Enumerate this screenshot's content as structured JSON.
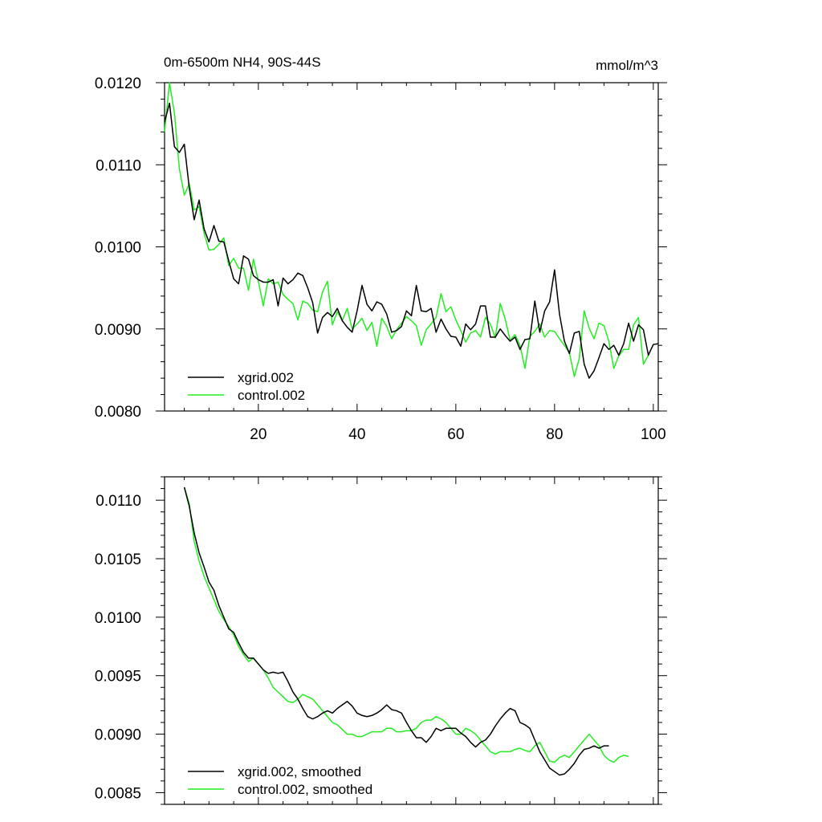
{
  "colors": {
    "xgrid": "#000000",
    "control": "#22ee22",
    "axis": "#000000"
  },
  "chart_data": [
    {
      "type": "line",
      "title": "0m-6500m NH4, 90S-44S",
      "units": "mmol/m^3",
      "xlim": [
        1,
        101
      ],
      "ylim": [
        0.008,
        0.012
      ],
      "xticks": [
        20,
        40,
        60,
        80,
        100
      ],
      "xtick_labels": [
        "20",
        "40",
        "60",
        "80",
        "100"
      ],
      "yticks": [
        0.008,
        0.009,
        0.01,
        0.011,
        0.012
      ],
      "ytick_labels": [
        "0.0080",
        "0.0090",
        "0.0100",
        "0.0110",
        "0.0120"
      ],
      "legend_position": "bottom-left",
      "series": [
        {
          "name": "xgrid.002",
          "color_key": "xgrid",
          "x_start": 1,
          "values": [
            0.01152,
            0.01175,
            0.01122,
            0.01115,
            0.01125,
            0.01072,
            0.01033,
            0.01057,
            0.01022,
            0.01006,
            0.01026,
            0.01007,
            0.01006,
            0.00983,
            0.00961,
            0.00955,
            0.00989,
            0.00985,
            0.00965,
            0.0096,
            0.00957,
            0.00957,
            0.0096,
            0.00928,
            0.00962,
            0.00955,
            0.0096,
            0.00968,
            0.00965,
            0.0095,
            0.00932,
            0.00895,
            0.00914,
            0.0092,
            0.00915,
            0.00925,
            0.0091,
            0.00902,
            0.00896,
            0.00922,
            0.00953,
            0.0093,
            0.00922,
            0.00933,
            0.0093,
            0.00918,
            0.00896,
            0.00898,
            0.00903,
            0.00922,
            0.00916,
            0.00953,
            0.00922,
            0.00921,
            0.00925,
            0.00896,
            0.00912,
            0.009,
            0.00891,
            0.0089,
            0.00879,
            0.00906,
            0.00899,
            0.00906,
            0.00928,
            0.00928,
            0.0089,
            0.0089,
            0.009,
            0.00892,
            0.00885,
            0.0089,
            0.00875,
            0.00887,
            0.00888,
            0.00934,
            0.00896,
            0.00922,
            0.00933,
            0.00972,
            0.00918,
            0.00885,
            0.0087,
            0.00895,
            0.00897,
            0.00857,
            0.0084,
            0.00849,
            0.00865,
            0.00882,
            0.00875,
            0.0088,
            0.00868,
            0.00882,
            0.00907,
            0.00885,
            0.00905,
            0.00899,
            0.00868,
            0.00881,
            0.00882
          ]
        },
        {
          "name": "control.002",
          "color_key": "control",
          "x_start": 1,
          "values": [
            0.0114,
            0.012,
            0.01163,
            0.01095,
            0.01063,
            0.01077,
            0.01045,
            0.01049,
            0.01017,
            0.00996,
            0.00997,
            0.01003,
            0.01011,
            0.00977,
            0.00986,
            0.00974,
            0.00974,
            0.00947,
            0.00985,
            0.00958,
            0.00928,
            0.00961,
            0.00955,
            0.00957,
            0.00942,
            0.00936,
            0.00931,
            0.00911,
            0.00934,
            0.00931,
            0.00923,
            0.00921,
            0.00945,
            0.00958,
            0.00905,
            0.00921,
            0.0091,
            0.00925,
            0.009,
            0.00906,
            0.00913,
            0.00898,
            0.00908,
            0.00879,
            0.00913,
            0.00903,
            0.00888,
            0.00899,
            0.00907,
            0.00915,
            0.0091,
            0.00904,
            0.0088,
            0.00899,
            0.00906,
            0.00914,
            0.00943,
            0.00921,
            0.00927,
            0.00911,
            0.00898,
            0.00884,
            0.00895,
            0.00898,
            0.0089,
            0.00914,
            0.00906,
            0.00889,
            0.00931,
            0.00912,
            0.00886,
            0.00893,
            0.0088,
            0.00852,
            0.00891,
            0.00897,
            0.00906,
            0.0089,
            0.00898,
            0.00897,
            0.00888,
            0.0088,
            0.00871,
            0.00842,
            0.00864,
            0.00922,
            0.00901,
            0.00888,
            0.00907,
            0.00904,
            0.00885,
            0.00852,
            0.00867,
            0.00875,
            0.00875,
            0.00905,
            0.00914,
            0.00857,
            0.00868
          ]
        }
      ]
    },
    {
      "type": "line",
      "xlim": [
        1,
        101
      ],
      "ylim": [
        0.0084,
        0.0112
      ],
      "xticks": [
        20,
        40,
        60,
        80,
        100
      ],
      "yticks": [
        0.0085,
        0.009,
        0.0095,
        0.01,
        0.0105,
        0.011
      ],
      "ytick_labels": [
        "0.0085",
        "0.0090",
        "0.0095",
        "0.0100",
        "0.0105",
        "0.0110"
      ],
      "legend_position": "bottom-left",
      "series": [
        {
          "name": "xgrid.002, smoothed",
          "color_key": "xgrid",
          "x_start": 5,
          "values": [
            0.01111,
            0.01095,
            0.01072,
            0.01055,
            0.01043,
            0.0103,
            0.01023,
            0.0101,
            0.01,
            0.0099,
            0.00987,
            0.00978,
            0.0097,
            0.00965,
            0.00965,
            0.0096,
            0.00955,
            0.00952,
            0.00953,
            0.00952,
            0.00953,
            0.00945,
            0.00936,
            0.0093,
            0.00922,
            0.00915,
            0.00913,
            0.00915,
            0.00918,
            0.0092,
            0.00918,
            0.00922,
            0.00925,
            0.00928,
            0.00924,
            0.00918,
            0.00916,
            0.00915,
            0.00916,
            0.00918,
            0.00921,
            0.00925,
            0.00921,
            0.0092,
            0.00918,
            0.0091,
            0.00903,
            0.00897,
            0.00897,
            0.00893,
            0.00898,
            0.00905,
            0.00903,
            0.00905,
            0.00905,
            0.00905,
            0.00901,
            0.00898,
            0.00893,
            0.00889,
            0.00893,
            0.00895,
            0.009,
            0.00907,
            0.00913,
            0.00918,
            0.00922,
            0.0092,
            0.0091,
            0.00908,
            0.00905,
            0.00895,
            0.00885,
            0.00878,
            0.00871,
            0.00868,
            0.00865,
            0.00866,
            0.0087,
            0.00875,
            0.00882,
            0.00887,
            0.00888,
            0.0089,
            0.00888,
            0.0089,
            0.0089
          ]
        },
        {
          "name": "control.002, smoothed",
          "color_key": "control",
          "x_start": 5,
          "values": [
            0.01111,
            0.01097,
            0.01065,
            0.01048,
            0.01035,
            0.01025,
            0.01015,
            0.01005,
            0.00998,
            0.00992,
            0.00985,
            0.00975,
            0.00968,
            0.00962,
            0.00965,
            0.0096,
            0.00955,
            0.00948,
            0.0094,
            0.00936,
            0.00932,
            0.00928,
            0.00927,
            0.0093,
            0.00934,
            0.00932,
            0.0093,
            0.00925,
            0.0092,
            0.00915,
            0.0091,
            0.00908,
            0.00904,
            0.009,
            0.009,
            0.00898,
            0.00898,
            0.009,
            0.00902,
            0.00902,
            0.00902,
            0.00905,
            0.00905,
            0.00902,
            0.00902,
            0.00903,
            0.00903,
            0.00905,
            0.0091,
            0.00912,
            0.00912,
            0.00915,
            0.00913,
            0.0091,
            0.00905,
            0.009,
            0.009,
            0.00905,
            0.00903,
            0.009,
            0.00895,
            0.0089,
            0.00885,
            0.00883,
            0.00885,
            0.00885,
            0.00885,
            0.00887,
            0.00888,
            0.00886,
            0.00885,
            0.0089,
            0.00893,
            0.00885,
            0.00877,
            0.00876,
            0.0088,
            0.00882,
            0.0088,
            0.00885,
            0.0089,
            0.00895,
            0.009,
            0.00895,
            0.0089,
            0.00882,
            0.00878,
            0.00876,
            0.0088,
            0.00882,
            0.00881
          ]
        }
      ]
    }
  ]
}
